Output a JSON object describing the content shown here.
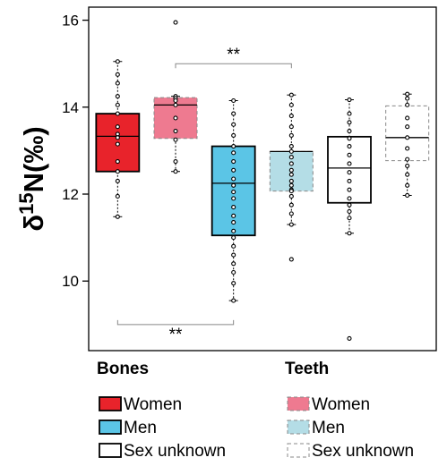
{
  "chart_data": {
    "type": "box",
    "ylabel_base": "δ",
    "ylabel_sup": "15",
    "ylabel_main": "N(‰)",
    "ylim": [
      8.4,
      16.3
    ],
    "yticks": [
      10,
      12,
      14,
      16
    ],
    "ytick_labels": [
      "10",
      "12",
      "14",
      "16"
    ],
    "grid": false,
    "group_labels": [
      "Bones",
      "Teeth"
    ],
    "significance": [
      {
        "label": "**",
        "from_box": 1,
        "to_box": 3,
        "position": "top",
        "y": 15.0
      },
      {
        "label": "**",
        "from_box": 0,
        "to_box": 2,
        "position": "bottom",
        "y": 9.0
      }
    ],
    "boxes": [
      {
        "tissue": "Bones",
        "sex": "Women",
        "color": "#e8232b",
        "dashed": false,
        "whisker_low": 11.48,
        "q1": 12.52,
        "median": 13.33,
        "q3": 13.85,
        "whisker_high": 15.05,
        "points": [
          15.05,
          14.75,
          14.55,
          14.25,
          14.05,
          13.85,
          13.55,
          13.38,
          13.3,
          13.15,
          12.75,
          12.52,
          12.3,
          11.95,
          11.48
        ]
      },
      {
        "tissue": "Teeth",
        "sex": "Women",
        "color": "#ee7a90",
        "dashed": true,
        "whisker_low": 12.52,
        "q1": 13.28,
        "median": 14.05,
        "q3": 14.22,
        "whisker_high": 14.25,
        "points": [
          15.95,
          14.25,
          14.2,
          14.15,
          14.05,
          13.75,
          13.45,
          13.25,
          12.75,
          12.52
        ]
      },
      {
        "tissue": "Bones",
        "sex": "Men",
        "color": "#5bc5e6",
        "dashed": false,
        "whisker_low": 9.55,
        "q1": 11.05,
        "median": 12.25,
        "q3": 13.1,
        "whisker_high": 14.15,
        "points": [
          14.15,
          13.85,
          13.6,
          13.35,
          13.1,
          12.95,
          12.75,
          12.55,
          12.35,
          12.2,
          12.05,
          11.9,
          11.7,
          11.5,
          11.35,
          11.15,
          11.0,
          10.8,
          10.6,
          10.4,
          10.2,
          9.95,
          9.55
        ]
      },
      {
        "tissue": "Teeth",
        "sex": "Men",
        "color": "#b4dde6",
        "dashed": true,
        "whisker_low": 11.3,
        "q1": 12.07,
        "median": 12.98,
        "q3": 12.98,
        "whisker_high": 14.28,
        "points": [
          14.28,
          14.05,
          13.8,
          13.55,
          13.35,
          13.1,
          12.98,
          12.85,
          12.7,
          12.55,
          12.45,
          12.3,
          12.2,
          12.1,
          12.07,
          11.95,
          11.75,
          11.55,
          11.3,
          10.5
        ]
      },
      {
        "tissue": "Bones",
        "sex": "Sex unknown",
        "color": "#ffffff",
        "dashed": false,
        "whisker_low": 11.1,
        "q1": 11.8,
        "median": 12.6,
        "q3": 13.32,
        "whisker_high": 14.17,
        "points": [
          14.17,
          13.85,
          13.65,
          13.45,
          13.28,
          13.1,
          12.9,
          12.7,
          12.5,
          12.3,
          12.1,
          11.9,
          11.75,
          11.6,
          11.45,
          11.1,
          8.68
        ]
      },
      {
        "tissue": "Teeth",
        "sex": "Sex unknown",
        "color": "#ffffff",
        "dashed": true,
        "whisker_low": 11.97,
        "q1": 12.77,
        "median": 13.3,
        "q3": 14.03,
        "whisker_high": 14.3,
        "points": [
          14.3,
          14.2,
          14.05,
          13.75,
          13.55,
          13.3,
          13.05,
          12.8,
          12.65,
          12.45,
          12.2,
          11.97
        ]
      }
    ],
    "legend": {
      "placement": "bottom",
      "columns": [
        {
          "title": "Bones",
          "entries": [
            {
              "label": "Women",
              "color": "#e8232b",
              "dashed": false
            },
            {
              "label": "Men",
              "color": "#5bc5e6",
              "dashed": false
            },
            {
              "label": "Sex unknown",
              "color": "#ffffff",
              "dashed": false
            }
          ]
        },
        {
          "title": "Teeth",
          "entries": [
            {
              "label": "Women",
              "color": "#ee7a90",
              "dashed": true
            },
            {
              "label": "Men",
              "color": "#b4dde6",
              "dashed": true
            },
            {
              "label": "Sex unknown",
              "color": "#ffffff",
              "dashed": true
            }
          ]
        }
      ]
    }
  }
}
